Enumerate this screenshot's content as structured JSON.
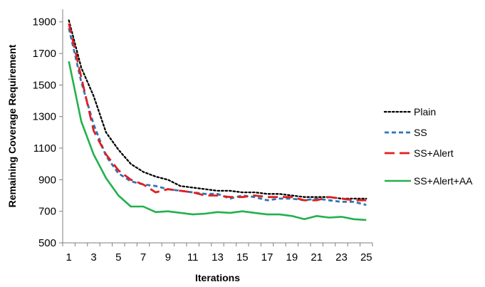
{
  "chart_data": {
    "type": "line",
    "xlabel": "Iterations",
    "ylabel": "Remaining Coverage Requirement",
    "x": [
      1,
      2,
      3,
      4,
      5,
      6,
      7,
      8,
      9,
      10,
      11,
      12,
      13,
      14,
      15,
      16,
      17,
      18,
      19,
      20,
      21,
      22,
      23,
      24,
      25
    ],
    "x_tick_labels": [
      "1",
      "3",
      "5",
      "7",
      "9",
      "11",
      "13",
      "15",
      "17",
      "19",
      "21",
      "23",
      "25"
    ],
    "y_ticks": [
      500,
      700,
      900,
      1100,
      1300,
      1500,
      1700,
      1900
    ],
    "ylim": [
      500,
      1980
    ],
    "xlim": [
      0.5,
      25.5
    ],
    "grid": false,
    "legend_position": "right",
    "series": [
      {
        "name": "Plain",
        "color": "#000000",
        "style": "dotted",
        "values": [
          1910,
          1610,
          1430,
          1200,
          1090,
          1000,
          950,
          920,
          900,
          860,
          850,
          840,
          830,
          830,
          820,
          820,
          810,
          810,
          800,
          790,
          790,
          790,
          780,
          780,
          780
        ]
      },
      {
        "name": "SS",
        "color": "#2e75b6",
        "style": "dashed",
        "values": [
          1860,
          1520,
          1250,
          1050,
          940,
          890,
          870,
          860,
          840,
          830,
          820,
          810,
          810,
          780,
          800,
          790,
          770,
          780,
          780,
          770,
          780,
          770,
          760,
          760,
          740
        ]
      },
      {
        "name": "SS+Alert",
        "color": "#e02020",
        "style": "longdash",
        "values": [
          1890,
          1550,
          1210,
          1060,
          960,
          900,
          870,
          820,
          840,
          830,
          820,
          800,
          800,
          790,
          790,
          800,
          790,
          790,
          790,
          770,
          770,
          790,
          780,
          770,
          770
        ]
      },
      {
        "name": "SS+Alert+AA",
        "color": "#22b14c",
        "style": "solid",
        "values": [
          1650,
          1270,
          1060,
          910,
          800,
          730,
          730,
          695,
          700,
          690,
          680,
          685,
          695,
          690,
          700,
          690,
          680,
          680,
          670,
          650,
          670,
          660,
          665,
          650,
          645
        ]
      }
    ]
  }
}
